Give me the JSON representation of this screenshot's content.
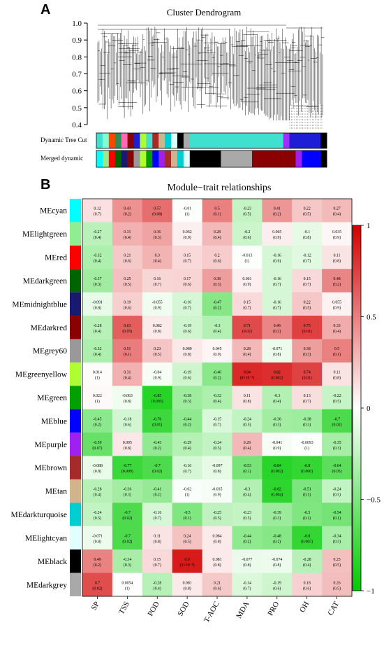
{
  "panel_a": {
    "letter": "A",
    "title": "Cluster Dendrogram",
    "y_ticks": [
      "1.0",
      "0.9",
      "0.8",
      "0.7",
      "0.6",
      "0.5",
      "0.4"
    ],
    "row_labels": [
      "Dynamic Tree Cut",
      "Merged dynamic"
    ],
    "dynamic_colors": [
      "#40e0d0",
      "#7fffd4",
      "#ff4500",
      "#2e8b57",
      "#ff69b4",
      "#8b0000",
      "#1e1ed6",
      "#adff2f",
      "#40e0d0",
      "#a52a2a",
      "#d2b48c",
      "#00ced1",
      "#e0ffff",
      "#000000",
      "#a9a9a9",
      "#40e0d0",
      "#40e0d0",
      "#40e0d0",
      "#9b30ff",
      "#1e1ed6",
      "#1e1ed6",
      "#1e1ed6",
      "#000000"
    ],
    "merged_colors": [
      "#00ffff",
      "#90ee90",
      "#ff0000",
      "#006400",
      "#191970",
      "#8b0000",
      "#999999",
      "#adff2f",
      "#00a000",
      "#0000ff",
      "#a020f0",
      "#a52a2a",
      "#d2b48c",
      "#00ced1",
      "#e0ffff",
      "#000000",
      "#a9a9a9",
      "#8b0000",
      "#8b0000",
      "#8b0000",
      "#a020f0",
      "#0000ff",
      "#000000"
    ]
  },
  "panel_b": {
    "letter": "B",
    "title": "Module−trait relationships",
    "legend_ticks": [
      "1",
      "0.5",
      "0",
      "−0.5",
      "−1"
    ]
  },
  "chart_data": {
    "type": "heatmap",
    "title": "Module−trait relationships",
    "columns": [
      "SP",
      "TSS",
      "POD",
      "SOD",
      "T-AOC",
      "MDA",
      "PRO",
      "OH",
      "CAT"
    ],
    "rows": [
      {
        "name": "MEcyan",
        "color": "#00ffff",
        "r": [
          0.12,
          0.43,
          0.57,
          -0.01,
          0.5,
          -0.23,
          0.41,
          0.22,
          0.27
        ],
        "p": [
          "(0.7)",
          "(0.2)",
          "(0.08)",
          "(1)",
          "(0.1)",
          "(0.5)",
          "(0.2)",
          "(0.5)",
          "(0.4)"
        ]
      },
      {
        "name": "MElightgreen",
        "color": "#90ee90",
        "r": [
          -0.27,
          0.31,
          0.36,
          0.062,
          0.28,
          -0.2,
          0.065,
          -0.1,
          0.035
        ],
        "p": [
          "(0.4)",
          "(0.4)",
          "(0.3)",
          "(0.9)",
          "(0.4)",
          "(0.6)",
          "(0.9)",
          "(0.8)",
          "(0.9)"
        ]
      },
      {
        "name": "MEred",
        "color": "#ff0000",
        "r": [
          -0.32,
          0.21,
          0.3,
          0.15,
          0.2,
          -0.013,
          -0.16,
          -0.12,
          0.11
        ],
        "p": [
          "(0.4)",
          "(0.6)",
          "(0.4)",
          "(0.7)",
          "(0.6)",
          "(1)",
          "(0.6)",
          "(0.7)",
          "(0.8)"
        ]
      },
      {
        "name": "MEdarkgreen",
        "color": "#006400",
        "r": [
          -0.37,
          0.25,
          0.16,
          0.17,
          0.38,
          0.061,
          -0.16,
          0.15,
          0.48
        ],
        "p": [
          "(0.3)",
          "(0.5)",
          "(0.7)",
          "(0.6)",
          "(0.3)",
          "(0.9)",
          "(0.7)",
          "(0.7)",
          "(0.2)"
        ]
      },
      {
        "name": "MEmidnightblue",
        "color": "#191970",
        "r": [
          -0.091,
          0.19,
          -0.055,
          -0.16,
          -0.47,
          0.15,
          -0.16,
          0.22,
          0.055
        ],
        "p": [
          "(0.8)",
          "(0.6)",
          "(0.9)",
          "(0.7)",
          "(0.2)",
          "(0.7)",
          "(0.7)",
          "(0.5)",
          "(0.9)"
        ]
      },
      {
        "name": "MEdarkred",
        "color": "#8b0000",
        "r": [
          -0.28,
          0.63,
          0.082,
          -0.19,
          -0.3,
          0.71,
          0.48,
          0.75,
          0.33
        ],
        "p": [
          "(0.4)",
          "(0.05)",
          "(0.8)",
          "(0.6)",
          "(0.4)",
          "(0.02)",
          "(0.2)",
          "(0.01)",
          "(0.4)"
        ]
      },
      {
        "name": "MEgrey60",
        "color": "#999999",
        "r": [
          -0.32,
          0.51,
          0.23,
          0.089,
          0.045,
          0.28,
          -0.071,
          0.38,
          0.5
        ],
        "p": [
          "(0.4)",
          "(0.1)",
          "(0.5)",
          "(0.8)",
          "(0.9)",
          "(0.4)",
          "(0.8)",
          "(0.3)",
          "(0.1)"
        ]
      },
      {
        "name": "MEgreenyellow",
        "color": "#adff2f",
        "r": [
          0.014,
          0.31,
          -0.04,
          -0.19,
          -0.46,
          0.84,
          0.82,
          0.74,
          0.11
        ],
        "p": [
          "(1)",
          "(0.4)",
          "(0.9)",
          "(0.6)",
          "(0.2)",
          "(8×10⁻³)",
          "(0.002)",
          "(0.01)",
          "(0.8)"
        ]
      },
      {
        "name": "MEgreen",
        "color": "#00a000",
        "r": [
          0.022,
          -0.063,
          -0.85,
          -0.38,
          -0.32,
          0.11,
          -0.3,
          0.13,
          -0.22
        ],
        "p": [
          "(1)",
          "(0.8)",
          "(0.005)",
          "(0.3)",
          "(0.4)",
          "(0.8)",
          "(0.4)",
          "(0.7)",
          "(0.5)"
        ]
      },
      {
        "name": "MEblue",
        "color": "#0000ff",
        "r": [
          -0.45,
          -0.18,
          -0.76,
          -0.44,
          -0.15,
          -0.24,
          -0.36,
          -0.38,
          -0.7
        ],
        "p": [
          "(0.2)",
          "(0.6)",
          "(0.01)",
          "(0.2)",
          "(0.7)",
          "(0.5)",
          "(0.3)",
          "(0.3)",
          "(0.02)"
        ]
      },
      {
        "name": "MEpurple",
        "color": "#a020f0",
        "r": [
          -0.59,
          0.095,
          -0.43,
          -0.29,
          -0.24,
          0.28,
          -0.041,
          -0.0093,
          -0.35
        ],
        "p": [
          "(0.07)",
          "(0.8)",
          "(0.2)",
          "(0.4)",
          "(0.5)",
          "(0.4)",
          "(0.9)",
          "(1)",
          "(0.3)"
        ]
      },
      {
        "name": "MEbrown",
        "color": "#a52a2a",
        "r": [
          -0.088,
          -0.77,
          -0.7,
          -0.16,
          -0.097,
          -0.53,
          -0.84,
          -0.8,
          -0.64
        ],
        "p": [
          "(0.8)",
          "(0.009)",
          "(0.02)",
          "(0.7)",
          "(0.8)",
          "(0.1)",
          "(0.002)",
          "(0.006)",
          "(0.05)"
        ]
      },
      {
        "name": "MEtan",
        "color": "#d2b48c",
        "r": [
          -0.28,
          -0.36,
          -0.41,
          -0.02,
          -0.035,
          -0.3,
          -0.82,
          -0.51,
          -0.24
        ],
        "p": [
          "(0.4)",
          "(0.3)",
          "(0.2)",
          "(1)",
          "(0.9)",
          "(0.4)",
          "(0.004)",
          "(0.1)",
          "(0.5)"
        ]
      },
      {
        "name": "MEdarkturquoise",
        "color": "#00ced1",
        "r": [
          -0.24,
          -0.7,
          -0.16,
          -0.5,
          -0.25,
          -0.23,
          -0.39,
          -0.5,
          -0.54
        ],
        "p": [
          "(0.5)",
          "(0.02)",
          "(0.7)",
          "(0.1)",
          "(0.5)",
          "(0.5)",
          "(0.3)",
          "(0.1)",
          "(0.1)"
        ]
      },
      {
        "name": "MElightcyan",
        "color": "#e0ffff",
        "r": [
          -0.071,
          -0.7,
          0.11,
          0.24,
          0.084,
          -0.44,
          -0.48,
          -0.8,
          -0.34
        ],
        "p": [
          "(0.8)",
          "(0.02)",
          "(0.8)",
          "(0.5)",
          "(0.8)",
          "(0.2)",
          "(0.2)",
          "(0.005)",
          "(0.3)"
        ]
      },
      {
        "name": "MEblack",
        "color": "#000000",
        "r": [
          0.49,
          -0.34,
          0.15,
          0.9,
          0.081,
          -0.077,
          -0.074,
          -0.28,
          0.25
        ],
        "p": [
          "(0.2)",
          "(0.3)",
          "(0.7)",
          "(3×10⁻⁴)",
          "(0.8)",
          "(0.8)",
          "(0.8)",
          "(0.4)",
          "(0.5)"
        ]
      },
      {
        "name": "MEdarkgrey",
        "color": "#a9a9a9",
        "r": [
          0.7,
          0.0054,
          -0.28,
          0.081,
          0.21,
          -0.14,
          -0.19,
          0.18,
          0.26
        ],
        "p": [
          "(0.02)",
          "(1)",
          "(0.4)",
          "(0.8)",
          "(0.6)",
          "(0.7)",
          "(0.6)",
          "(0.6)",
          "(0.5)"
        ]
      }
    ],
    "color_scale": {
      "min": -1,
      "max": 1,
      "low": "#00cc00",
      "mid": "#ffffff",
      "high": "#d40000"
    },
    "legend_placement": "right"
  }
}
